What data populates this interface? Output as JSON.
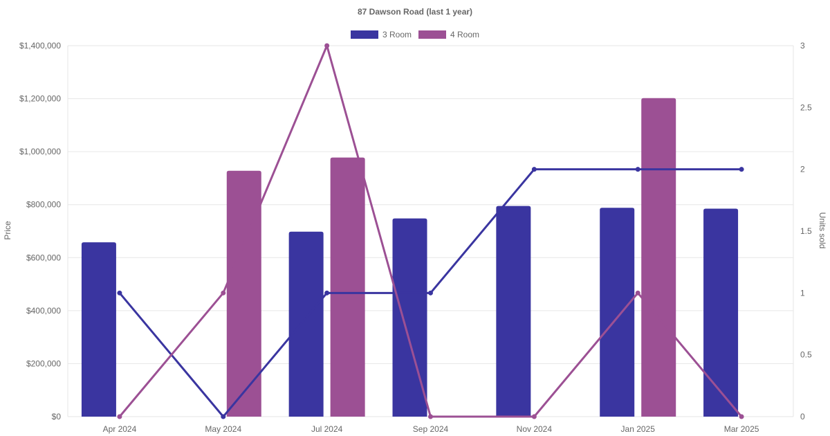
{
  "chart_data": {
    "type": "bar",
    "title": "87 Dawson Road (last 1 year)",
    "categories": [
      "Apr 2024",
      "May 2024",
      "Jul 2024",
      "Sep 2024",
      "Nov 2024",
      "Jan 2025",
      "Mar 2025"
    ],
    "y_left": {
      "label": "Price",
      "range": [
        0,
        1400000
      ],
      "ticks": [
        0,
        200000,
        400000,
        600000,
        800000,
        1000000,
        1200000,
        1400000
      ],
      "tick_labels": [
        "$0",
        "$200,000",
        "$400,000",
        "$600,000",
        "$800,000",
        "$1,000,000",
        "$1,200,000",
        "$1,400,000"
      ]
    },
    "y_right": {
      "label": "Units sold",
      "range": [
        0,
        3
      ],
      "ticks": [
        0,
        0.5,
        1,
        1.5,
        2,
        2.5,
        3
      ],
      "tick_labels": [
        "0",
        "0.5",
        "1",
        "1.5",
        "2",
        "2.5",
        "3"
      ]
    },
    "series": [
      {
        "name": "3 Room",
        "color": "#3a35a0",
        "price": [
          658000,
          null,
          698000,
          748000,
          795000,
          788000,
          785000
        ],
        "units_sold": [
          1,
          0,
          1,
          1,
          2,
          2,
          2
        ]
      },
      {
        "name": "4 Room",
        "color": "#9c5094",
        "price": [
          null,
          928000,
          978000,
          null,
          null,
          1202000,
          null
        ],
        "units_sold": [
          0,
          1,
          3,
          0,
          0,
          1,
          0
        ]
      }
    ],
    "grid": true,
    "legend_position": "top-center"
  }
}
